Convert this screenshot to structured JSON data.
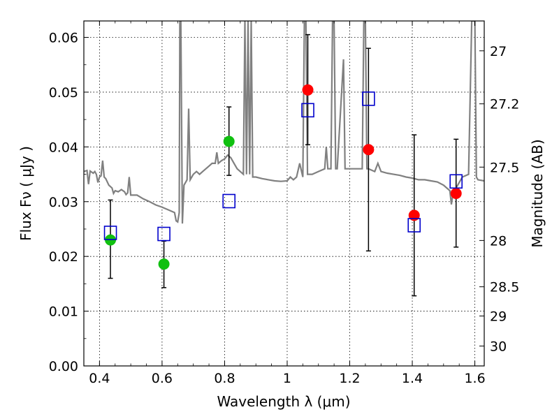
{
  "chart_data": {
    "type": "scatter",
    "title": "",
    "xlabel": "Wavelength  λ (μm)",
    "ylabel": "Flux  Fν  ( μJy )",
    "y2label": "Magnitude (AB)",
    "xlim": [
      0.35,
      1.63
    ],
    "ylim": [
      0.0,
      0.063
    ],
    "grid": true,
    "x_ticks": [
      0.4,
      0.6,
      0.8,
      1.0,
      1.2,
      1.4,
      1.6
    ],
    "x_tick_labels": [
      "0.4",
      "0.6",
      "0.8",
      "1",
      "1.2",
      "1.4",
      "1.6"
    ],
    "y_ticks": [
      0.0,
      0.01,
      0.02,
      0.03,
      0.04,
      0.05,
      0.06
    ],
    "y_tick_labels": [
      "0.00",
      "0.01",
      "0.02",
      "0.03",
      "0.04",
      "0.05",
      "0.06"
    ],
    "y2_ticks": [
      27,
      27.2,
      27.5,
      28,
      28.5,
      29,
      30
    ],
    "y2_tick_labels": [
      "27",
      "27.2",
      "27.5",
      "28",
      "28.5",
      "29",
      "30"
    ],
    "colors": {
      "model": "#808080",
      "green": "#10c010",
      "red": "#ff0000",
      "blue_box": "#0000cc",
      "errorbar": "#000000"
    },
    "series": [
      {
        "style": "green-circle",
        "points": [
          {
            "x": 0.435,
            "y": 0.023,
            "yerr_low": 0.016,
            "yerr_high": 0.0303
          },
          {
            "x": 0.606,
            "y": 0.0186,
            "yerr_low": 0.0143,
            "yerr_high": 0.0228
          },
          {
            "x": 0.814,
            "y": 0.041,
            "yerr_low": 0.0348,
            "yerr_high": 0.0473
          }
        ]
      },
      {
        "style": "red-circle",
        "points": [
          {
            "x": 1.066,
            "y": 0.0504,
            "yerr_low": 0.0404,
            "yerr_high": 0.0605
          },
          {
            "x": 1.26,
            "y": 0.0395,
            "yerr_low": 0.021,
            "yerr_high": 0.058
          },
          {
            "x": 1.406,
            "y": 0.0275,
            "yerr_low": 0.0128,
            "yerr_high": 0.0422
          },
          {
            "x": 1.54,
            "y": 0.0315,
            "yerr_low": 0.0217,
            "yerr_high": 0.0414
          }
        ]
      },
      {
        "style": "blue-open-square",
        "points": [
          {
            "x": 0.435,
            "y": 0.0243
          },
          {
            "x": 0.606,
            "y": 0.0241
          },
          {
            "x": 0.814,
            "y": 0.0301
          },
          {
            "x": 1.066,
            "y": 0.0467
          },
          {
            "x": 1.26,
            "y": 0.0488
          },
          {
            "x": 1.406,
            "y": 0.0257
          },
          {
            "x": 1.54,
            "y": 0.0337
          }
        ]
      }
    ],
    "model_spectrum": {
      "style": "grey-line",
      "points": [
        [
          0.35,
          0.0355
        ],
        [
          0.36,
          0.0357
        ],
        [
          0.365,
          0.0332
        ],
        [
          0.37,
          0.0356
        ],
        [
          0.38,
          0.0352
        ],
        [
          0.385,
          0.0355
        ],
        [
          0.39,
          0.035
        ],
        [
          0.395,
          0.0335
        ],
        [
          0.4,
          0.0345
        ],
        [
          0.405,
          0.0347
        ],
        [
          0.41,
          0.0375
        ],
        [
          0.415,
          0.0345
        ],
        [
          0.42,
          0.0342
        ],
        [
          0.43,
          0.033
        ],
        [
          0.44,
          0.0325
        ],
        [
          0.445,
          0.0315
        ],
        [
          0.45,
          0.032
        ],
        [
          0.46,
          0.0318
        ],
        [
          0.47,
          0.0322
        ],
        [
          0.48,
          0.0318
        ],
        [
          0.485,
          0.0313
        ],
        [
          0.49,
          0.0316
        ],
        [
          0.495,
          0.0345
        ],
        [
          0.5,
          0.0312
        ],
        [
          0.52,
          0.0312
        ],
        [
          0.54,
          0.0305
        ],
        [
          0.56,
          0.03
        ],
        [
          0.58,
          0.0294
        ],
        [
          0.6,
          0.029
        ],
        [
          0.62,
          0.0285
        ],
        [
          0.64,
          0.028
        ],
        [
          0.645,
          0.0265
        ],
        [
          0.65,
          0.0263
        ],
        [
          0.655,
          0.028
        ],
        [
          0.657,
          0.063
        ],
        [
          0.66,
          0.063
        ],
        [
          0.665,
          0.026
        ],
        [
          0.67,
          0.033
        ],
        [
          0.68,
          0.034
        ],
        [
          0.685,
          0.047
        ],
        [
          0.69,
          0.034
        ],
        [
          0.7,
          0.035
        ],
        [
          0.71,
          0.0355
        ],
        [
          0.72,
          0.035
        ],
        [
          0.73,
          0.0355
        ],
        [
          0.74,
          0.036
        ],
        [
          0.75,
          0.0365
        ],
        [
          0.76,
          0.037
        ],
        [
          0.77,
          0.037
        ],
        [
          0.775,
          0.039
        ],
        [
          0.78,
          0.037
        ],
        [
          0.79,
          0.0375
        ],
        [
          0.8,
          0.0378
        ],
        [
          0.81,
          0.0385
        ],
        [
          0.82,
          0.038
        ],
        [
          0.83,
          0.037
        ],
        [
          0.84,
          0.036
        ],
        [
          0.85,
          0.0355
        ],
        [
          0.86,
          0.035
        ],
        [
          0.865,
          0.063
        ],
        [
          0.87,
          0.035
        ],
        [
          0.875,
          0.063
        ],
        [
          0.88,
          0.035
        ],
        [
          0.885,
          0.063
        ],
        [
          0.89,
          0.0345
        ],
        [
          0.9,
          0.0345
        ],
        [
          0.92,
          0.0342
        ],
        [
          0.94,
          0.034
        ],
        [
          0.96,
          0.0338
        ],
        [
          0.98,
          0.0337
        ],
        [
          1.0,
          0.0338
        ],
        [
          1.01,
          0.0345
        ],
        [
          1.02,
          0.034
        ],
        [
          1.03,
          0.0345
        ],
        [
          1.04,
          0.037
        ],
        [
          1.05,
          0.0345
        ],
        [
          1.055,
          0.063
        ],
        [
          1.06,
          0.063
        ],
        [
          1.065,
          0.035
        ],
        [
          1.08,
          0.035
        ],
        [
          1.1,
          0.0355
        ],
        [
          1.12,
          0.036
        ],
        [
          1.125,
          0.04
        ],
        [
          1.13,
          0.036
        ],
        [
          1.14,
          0.036
        ],
        [
          1.145,
          0.063
        ],
        [
          1.15,
          0.063
        ],
        [
          1.155,
          0.036
        ],
        [
          1.16,
          0.036
        ],
        [
          1.18,
          0.056
        ],
        [
          1.185,
          0.036
        ],
        [
          1.2,
          0.036
        ],
        [
          1.22,
          0.036
        ],
        [
          1.24,
          0.036
        ],
        [
          1.245,
          0.063
        ],
        [
          1.25,
          0.063
        ],
        [
          1.255,
          0.036
        ],
        [
          1.26,
          0.036
        ],
        [
          1.28,
          0.0355
        ],
        [
          1.29,
          0.037
        ],
        [
          1.3,
          0.0355
        ],
        [
          1.32,
          0.0352
        ],
        [
          1.34,
          0.035
        ],
        [
          1.36,
          0.0348
        ],
        [
          1.38,
          0.0345
        ],
        [
          1.4,
          0.0343
        ],
        [
          1.42,
          0.034
        ],
        [
          1.44,
          0.034
        ],
        [
          1.46,
          0.0338
        ],
        [
          1.48,
          0.0336
        ],
        [
          1.5,
          0.033
        ],
        [
          1.52,
          0.032
        ],
        [
          1.525,
          0.0295
        ],
        [
          1.53,
          0.0315
        ],
        [
          1.54,
          0.0325
        ],
        [
          1.56,
          0.0345
        ],
        [
          1.58,
          0.035
        ],
        [
          1.59,
          0.063
        ],
        [
          1.6,
          0.063
        ],
        [
          1.605,
          0.0345
        ],
        [
          1.61,
          0.034
        ],
        [
          1.63,
          0.0338
        ]
      ]
    }
  }
}
